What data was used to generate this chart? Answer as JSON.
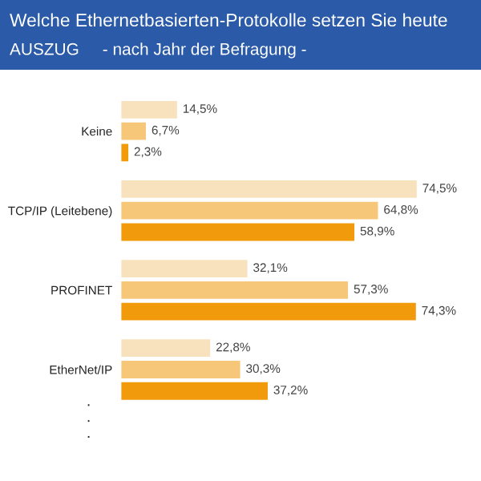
{
  "chart_data": {
    "type": "bar",
    "orientation": "horizontal",
    "title": "Welche Ethernetbasierten-Protokolle setzen Sie heute",
    "subtitle": "AUSZUG     - nach Jahr der Befragung -",
    "categories": [
      "Keine",
      "TCP/IP (Leitebene)",
      "PROFINET",
      "EtherNet/IP"
    ],
    "series": [
      {
        "color": "#f7e2bd",
        "values": [
          14.5,
          74.5,
          32.1,
          22.8
        ],
        "value_labels": [
          "14,5%",
          "74,5%",
          "32,1%",
          "22,8%"
        ]
      },
      {
        "color": "#f6c778",
        "values": [
          6.7,
          64.8,
          57.3,
          30.3
        ],
        "value_labels": [
          "6,7%",
          "64,8%",
          "57,3%",
          "30,3%"
        ]
      },
      {
        "color": "#f19a0c",
        "values": [
          2.3,
          58.9,
          74.3,
          37.2
        ],
        "value_labels": [
          "2,3%",
          "58,9%",
          "74,3%",
          "37,2%"
        ]
      }
    ],
    "annotations": [
      "·",
      "·",
      "·"
    ],
    "grid": false,
    "legend": false
  }
}
